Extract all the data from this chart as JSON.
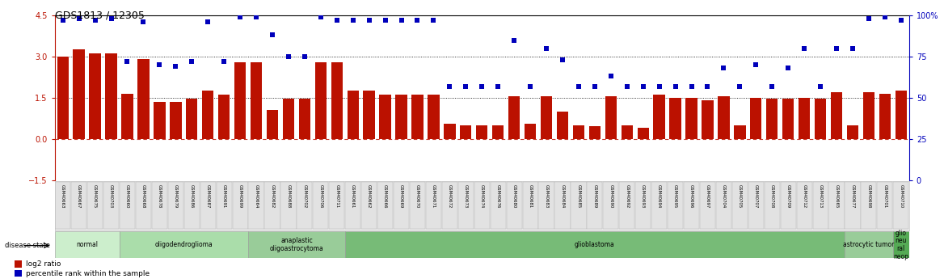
{
  "title": "GDS1813 / 12305",
  "samples": [
    "GSM40663",
    "GSM40667",
    "GSM40675",
    "GSM40703",
    "GSM40660",
    "GSM40668",
    "GSM40678",
    "GSM40679",
    "GSM40686",
    "GSM40687",
    "GSM40691",
    "GSM40699",
    "GSM40664",
    "GSM40682",
    "GSM40688",
    "GSM40702",
    "GSM40706",
    "GSM40711",
    "GSM40661",
    "GSM40662",
    "GSM40666",
    "GSM40669",
    "GSM40670",
    "GSM40671",
    "GSM40672",
    "GSM40673",
    "GSM40674",
    "GSM40676",
    "GSM40680",
    "GSM40681",
    "GSM40683",
    "GSM40684",
    "GSM40685",
    "GSM40689",
    "GSM40690",
    "GSM40692",
    "GSM40693",
    "GSM40694",
    "GSM40695",
    "GSM40696",
    "GSM40697",
    "GSM40704",
    "GSM40705",
    "GSM40707",
    "GSM40708",
    "GSM40709",
    "GSM40712",
    "GSM40713",
    "GSM40665",
    "GSM40677",
    "GSM40698",
    "GSM40701",
    "GSM40710"
  ],
  "log2_ratio": [
    3.0,
    3.25,
    3.1,
    3.1,
    1.65,
    2.9,
    1.35,
    1.35,
    1.45,
    1.75,
    1.6,
    2.8,
    2.8,
    1.05,
    1.45,
    1.45,
    2.8,
    2.8,
    1.75,
    1.75,
    1.6,
    1.6,
    1.6,
    1.6,
    0.55,
    0.5,
    0.5,
    0.5,
    1.55,
    0.55,
    1.55,
    1.0,
    0.5,
    0.45,
    1.55,
    0.5,
    0.4,
    1.6,
    1.5,
    1.5,
    1.4,
    1.55,
    0.5,
    1.5,
    1.45,
    1.45,
    1.5,
    1.45,
    1.7,
    0.5,
    1.7,
    1.65,
    1.75
  ],
  "percentile_pct": [
    97,
    98,
    97,
    98,
    72,
    96,
    70,
    69,
    72,
    96,
    72,
    99,
    99,
    88,
    75,
    75,
    99,
    97,
    97,
    97,
    97,
    97,
    97,
    97,
    57,
    57,
    57,
    57,
    85,
    57,
    80,
    73,
    57,
    57,
    63,
    57,
    57,
    57,
    57,
    57,
    57,
    68,
    57,
    70,
    57,
    68,
    80,
    57,
    80,
    80,
    98,
    99,
    97
  ],
  "disease_groups": [
    {
      "label": "normal",
      "start": 0,
      "end": 4,
      "color": "#cceecc"
    },
    {
      "label": "oligodendroglioma",
      "start": 4,
      "end": 12,
      "color": "#aaddaa"
    },
    {
      "label": "anaplastic\noligoastrocytoma",
      "start": 12,
      "end": 18,
      "color": "#99cc99"
    },
    {
      "label": "glioblastoma",
      "start": 18,
      "end": 49,
      "color": "#77bb77"
    },
    {
      "label": "astrocytic tumor",
      "start": 49,
      "end": 52,
      "color": "#99cc99"
    },
    {
      "label": "glio\nneu\nral\nneop",
      "start": 52,
      "end": 53,
      "color": "#55aa55"
    }
  ],
  "bar_color": "#bb1100",
  "dot_color": "#0000bb",
  "ylim_left": [
    -1.5,
    4.5
  ],
  "ylim_right": [
    0,
    100
  ],
  "yticks_left": [
    -1.5,
    0.0,
    1.5,
    3.0,
    4.5
  ],
  "yticks_right": [
    0,
    25,
    50,
    75,
    100
  ],
  "bg_color": "#ffffff"
}
